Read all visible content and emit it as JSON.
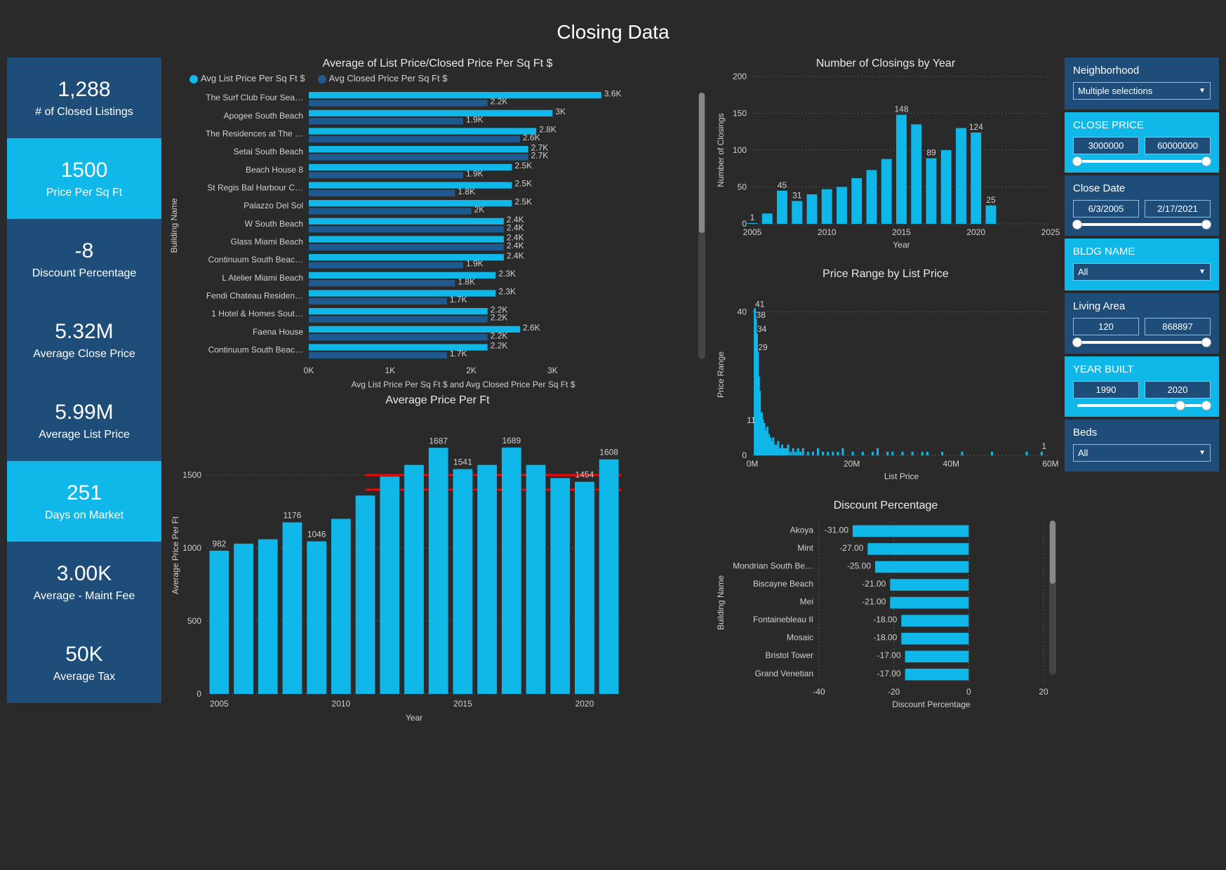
{
  "page_title": "Closing Data",
  "colors": {
    "bg": "#2a2a2a",
    "kpi_dark": "#1e4d7a",
    "kpi_light": "#0fb8e8",
    "bar_light": "#0fb8e8",
    "bar_dark": "#1e5a8f",
    "text": "#eaeaea",
    "grid": "#555555",
    "reference_line": "#ff0000"
  },
  "kpi_cards": [
    {
      "value": "1,288",
      "label": "# of Closed Listings",
      "tone": "dark"
    },
    {
      "value": "1500",
      "label": "Price Per Sq Ft",
      "tone": "light"
    },
    {
      "value": "-8",
      "label": "Discount Percentage",
      "tone": "dark"
    },
    {
      "value": "5.32M",
      "label": "Average Close Price",
      "tone": "dark"
    },
    {
      "value": "5.99M",
      "label": "Average List Price",
      "tone": "dark"
    },
    {
      "value": "251",
      "label": "Days on Market",
      "tone": "light"
    },
    {
      "value": "3.00K",
      "label": "Average - Maint Fee",
      "tone": "dark"
    },
    {
      "value": "50K",
      "label": "Average Tax",
      "tone": "dark"
    }
  ],
  "slicers": [
    {
      "title": "Neighborhood",
      "kind": "select",
      "value": "Multiple selections",
      "tone": "dark"
    },
    {
      "title": "CLOSE PRICE",
      "kind": "range",
      "lo": "3000000",
      "hi": "60000000",
      "tone": "light",
      "knobs": [
        0,
        100
      ]
    },
    {
      "title": "Close Date",
      "kind": "range",
      "lo": "6/3/2005",
      "hi": "2/17/2021",
      "tone": "dark",
      "knobs": [
        0,
        100
      ]
    },
    {
      "title": "BLDG NAME",
      "kind": "select",
      "value": "All",
      "tone": "light"
    },
    {
      "title": "Living Area",
      "kind": "range",
      "lo": "120",
      "hi": "868897",
      "tone": "dark",
      "knobs": [
        0,
        100
      ]
    },
    {
      "title": "YEAR BUILT",
      "kind": "range",
      "lo": "1990",
      "hi": "2020",
      "tone": "light",
      "knobs": [
        80,
        100
      ]
    },
    {
      "title": "Beds",
      "kind": "select",
      "value": "All",
      "tone": "dark"
    }
  ],
  "grouped_hbar": {
    "title": "Average of List Price/Closed Price Per Sq Ft $",
    "legend": [
      "Avg List Price Per Sq Ft $",
      "Avg Closed Price Per Sq Ft $"
    ],
    "legend_colors": [
      "#0fb8e8",
      "#1e5a8f"
    ],
    "x_axis_label": "Avg List Price Per Sq Ft $ and Avg Closed Price Per Sq Ft $",
    "y_axis_label": "Building Name",
    "x_ticks": [
      "0K",
      "1K",
      "2K",
      "3K"
    ],
    "x_max": 3800,
    "rows": [
      {
        "name": "The Surf Club Four Sea…",
        "list": 3600,
        "closed": 2200
      },
      {
        "name": "Apogee South Beach",
        "list": 3000,
        "closed": 1900
      },
      {
        "name": "The Residences at The …",
        "list": 2800,
        "closed": 2600
      },
      {
        "name": "Setai South Beach",
        "list": 2700,
        "closed": 2700
      },
      {
        "name": "Beach House 8",
        "list": 2500,
        "closed": 1900
      },
      {
        "name": "St Regis Bal Harbour C…",
        "list": 2500,
        "closed": 1800
      },
      {
        "name": "Palazzo Del Sol",
        "list": 2500,
        "closed": 2000
      },
      {
        "name": "W South Beach",
        "list": 2400,
        "closed": 2400
      },
      {
        "name": "Glass Miami Beach",
        "list": 2400,
        "closed": 2400
      },
      {
        "name": "Continuum South Beac…",
        "list": 2400,
        "closed": 1900
      },
      {
        "name": "L Atelier Miami Beach",
        "list": 2300,
        "closed": 1800
      },
      {
        "name": "Fendi Chateau Residen…",
        "list": 2300,
        "closed": 1700
      },
      {
        "name": "1 Hotel & Homes Sout…",
        "list": 2200,
        "closed": 2200
      },
      {
        "name": "Faena House",
        "list": 2600,
        "closed": 2200
      },
      {
        "name": "Continuum South Beac…",
        "list": 2200,
        "closed": 1700
      }
    ]
  },
  "avg_price_year": {
    "title": "Average Price Per Ft",
    "x_axis_label": "Year",
    "y_axis_label": "Average Price Per Ft",
    "y_ticks": [
      0,
      500,
      1000,
      1500
    ],
    "y_max": 1900,
    "x_ticks": [
      "2005",
      "2010",
      "2015",
      "2020"
    ],
    "ref_lines": [
      1500,
      1400
    ],
    "bars": [
      {
        "year": 2005,
        "val": 982,
        "show": true
      },
      {
        "year": 2006,
        "val": 1030,
        "show": false
      },
      {
        "year": 2007,
        "val": 1060,
        "show": false
      },
      {
        "year": 2008,
        "val": 1176,
        "show": true
      },
      {
        "year": 2009,
        "val": 1046,
        "show": true
      },
      {
        "year": 2010,
        "val": 1200,
        "show": false
      },
      {
        "year": 2011,
        "val": 1360,
        "show": false
      },
      {
        "year": 2012,
        "val": 1490,
        "show": false
      },
      {
        "year": 2013,
        "val": 1570,
        "show": false
      },
      {
        "year": 2014,
        "val": 1687,
        "show": true
      },
      {
        "year": 2015,
        "val": 1541,
        "show": true
      },
      {
        "year": 2016,
        "val": 1570,
        "show": false
      },
      {
        "year": 2017,
        "val": 1689,
        "show": true
      },
      {
        "year": 2018,
        "val": 1570,
        "show": false
      },
      {
        "year": 2019,
        "val": 1480,
        "show": false
      },
      {
        "year": 2020,
        "val": 1454,
        "show": true,
        "light": true
      },
      {
        "year": 2021,
        "val": 1608,
        "show": true
      }
    ]
  },
  "closings_year": {
    "title": "Number of Closings by Year",
    "x_axis_label": "Year",
    "y_axis_label": "Number of Closings",
    "y_ticks": [
      0,
      50,
      100,
      150,
      200
    ],
    "y_max": 200,
    "x_ticks": [
      "2005",
      "2010",
      "2015",
      "2020",
      "2025"
    ],
    "x_min": 2005,
    "x_max": 2025,
    "bars": [
      {
        "year": 2005,
        "val": 1,
        "show": true
      },
      {
        "year": 2006,
        "val": 14,
        "show": false
      },
      {
        "year": 2007,
        "val": 45,
        "show": true
      },
      {
        "year": 2008,
        "val": 31,
        "show": true
      },
      {
        "year": 2009,
        "val": 40,
        "show": false
      },
      {
        "year": 2010,
        "val": 47,
        "show": false
      },
      {
        "year": 2011,
        "val": 50,
        "show": false
      },
      {
        "year": 2012,
        "val": 62,
        "show": false
      },
      {
        "year": 2013,
        "val": 73,
        "show": false
      },
      {
        "year": 2014,
        "val": 88,
        "show": false
      },
      {
        "year": 2015,
        "val": 148,
        "show": true
      },
      {
        "year": 2016,
        "val": 135,
        "show": false
      },
      {
        "year": 2017,
        "val": 89,
        "show": true
      },
      {
        "year": 2018,
        "val": 100,
        "show": false
      },
      {
        "year": 2019,
        "val": 130,
        "show": false
      },
      {
        "year": 2020,
        "val": 124,
        "show": true
      },
      {
        "year": 2021,
        "val": 25,
        "show": true
      }
    ]
  },
  "price_range": {
    "title": "Price Range by List Price",
    "x_axis_label": "List Price",
    "y_axis_label": "Price Range",
    "y_ticks": [
      0,
      40
    ],
    "y_max": 45,
    "x_ticks": [
      "0M",
      "20M",
      "40M",
      "60M"
    ],
    "x_max": 60,
    "top_labels": [
      41,
      38,
      34,
      29
    ],
    "label_11": 11,
    "label_1": 1,
    "bars": [
      [
        0.3,
        41
      ],
      [
        0.5,
        38
      ],
      [
        0.7,
        34
      ],
      [
        0.9,
        29
      ],
      [
        1.1,
        22
      ],
      [
        1.3,
        18
      ],
      [
        1.5,
        11
      ],
      [
        1.7,
        12
      ],
      [
        1.9,
        10
      ],
      [
        2.2,
        9
      ],
      [
        2.5,
        7
      ],
      [
        2.8,
        8
      ],
      [
        3.1,
        6
      ],
      [
        3.4,
        5
      ],
      [
        3.7,
        4
      ],
      [
        4.0,
        5
      ],
      [
        4.3,
        3
      ],
      [
        4.6,
        3
      ],
      [
        5.0,
        4
      ],
      [
        5.4,
        2
      ],
      [
        5.8,
        3
      ],
      [
        6.2,
        2
      ],
      [
        6.6,
        2
      ],
      [
        7.0,
        3
      ],
      [
        7.5,
        1
      ],
      [
        8.0,
        2
      ],
      [
        8.5,
        1
      ],
      [
        9.0,
        2
      ],
      [
        9.5,
        1
      ],
      [
        10,
        2
      ],
      [
        11,
        1
      ],
      [
        12,
        1
      ],
      [
        13,
        2
      ],
      [
        14,
        1
      ],
      [
        15,
        1
      ],
      [
        16,
        1
      ],
      [
        17,
        1
      ],
      [
        18,
        2
      ],
      [
        20,
        1
      ],
      [
        22,
        1
      ],
      [
        24,
        1
      ],
      [
        25,
        2
      ],
      [
        27,
        1
      ],
      [
        28,
        1
      ],
      [
        30,
        1
      ],
      [
        32,
        1
      ],
      [
        34,
        1
      ],
      [
        35,
        1
      ],
      [
        38,
        1
      ],
      [
        42,
        1
      ],
      [
        48,
        1
      ],
      [
        55,
        1
      ],
      [
        58,
        1
      ]
    ]
  },
  "discount": {
    "title": "Discount Percentage",
    "x_axis_label": "Discount Percentage",
    "y_axis_label": "Building Name",
    "x_ticks": [
      "-40",
      "-20",
      "0",
      "20"
    ],
    "x_min": -40,
    "x_max": 20,
    "rows": [
      {
        "name": "Akoya",
        "val": -31.0
      },
      {
        "name": "Mint",
        "val": -27.0
      },
      {
        "name": "Mondrian South Be…",
        "val": -25.0
      },
      {
        "name": "Biscayne Beach",
        "val": -21.0
      },
      {
        "name": "Mei",
        "val": -21.0
      },
      {
        "name": "Fontainebleau II",
        "val": -18.0
      },
      {
        "name": "Mosaic",
        "val": -18.0
      },
      {
        "name": "Bristol Tower",
        "val": -17.0
      },
      {
        "name": "Grand Venetian",
        "val": -17.0
      }
    ]
  }
}
